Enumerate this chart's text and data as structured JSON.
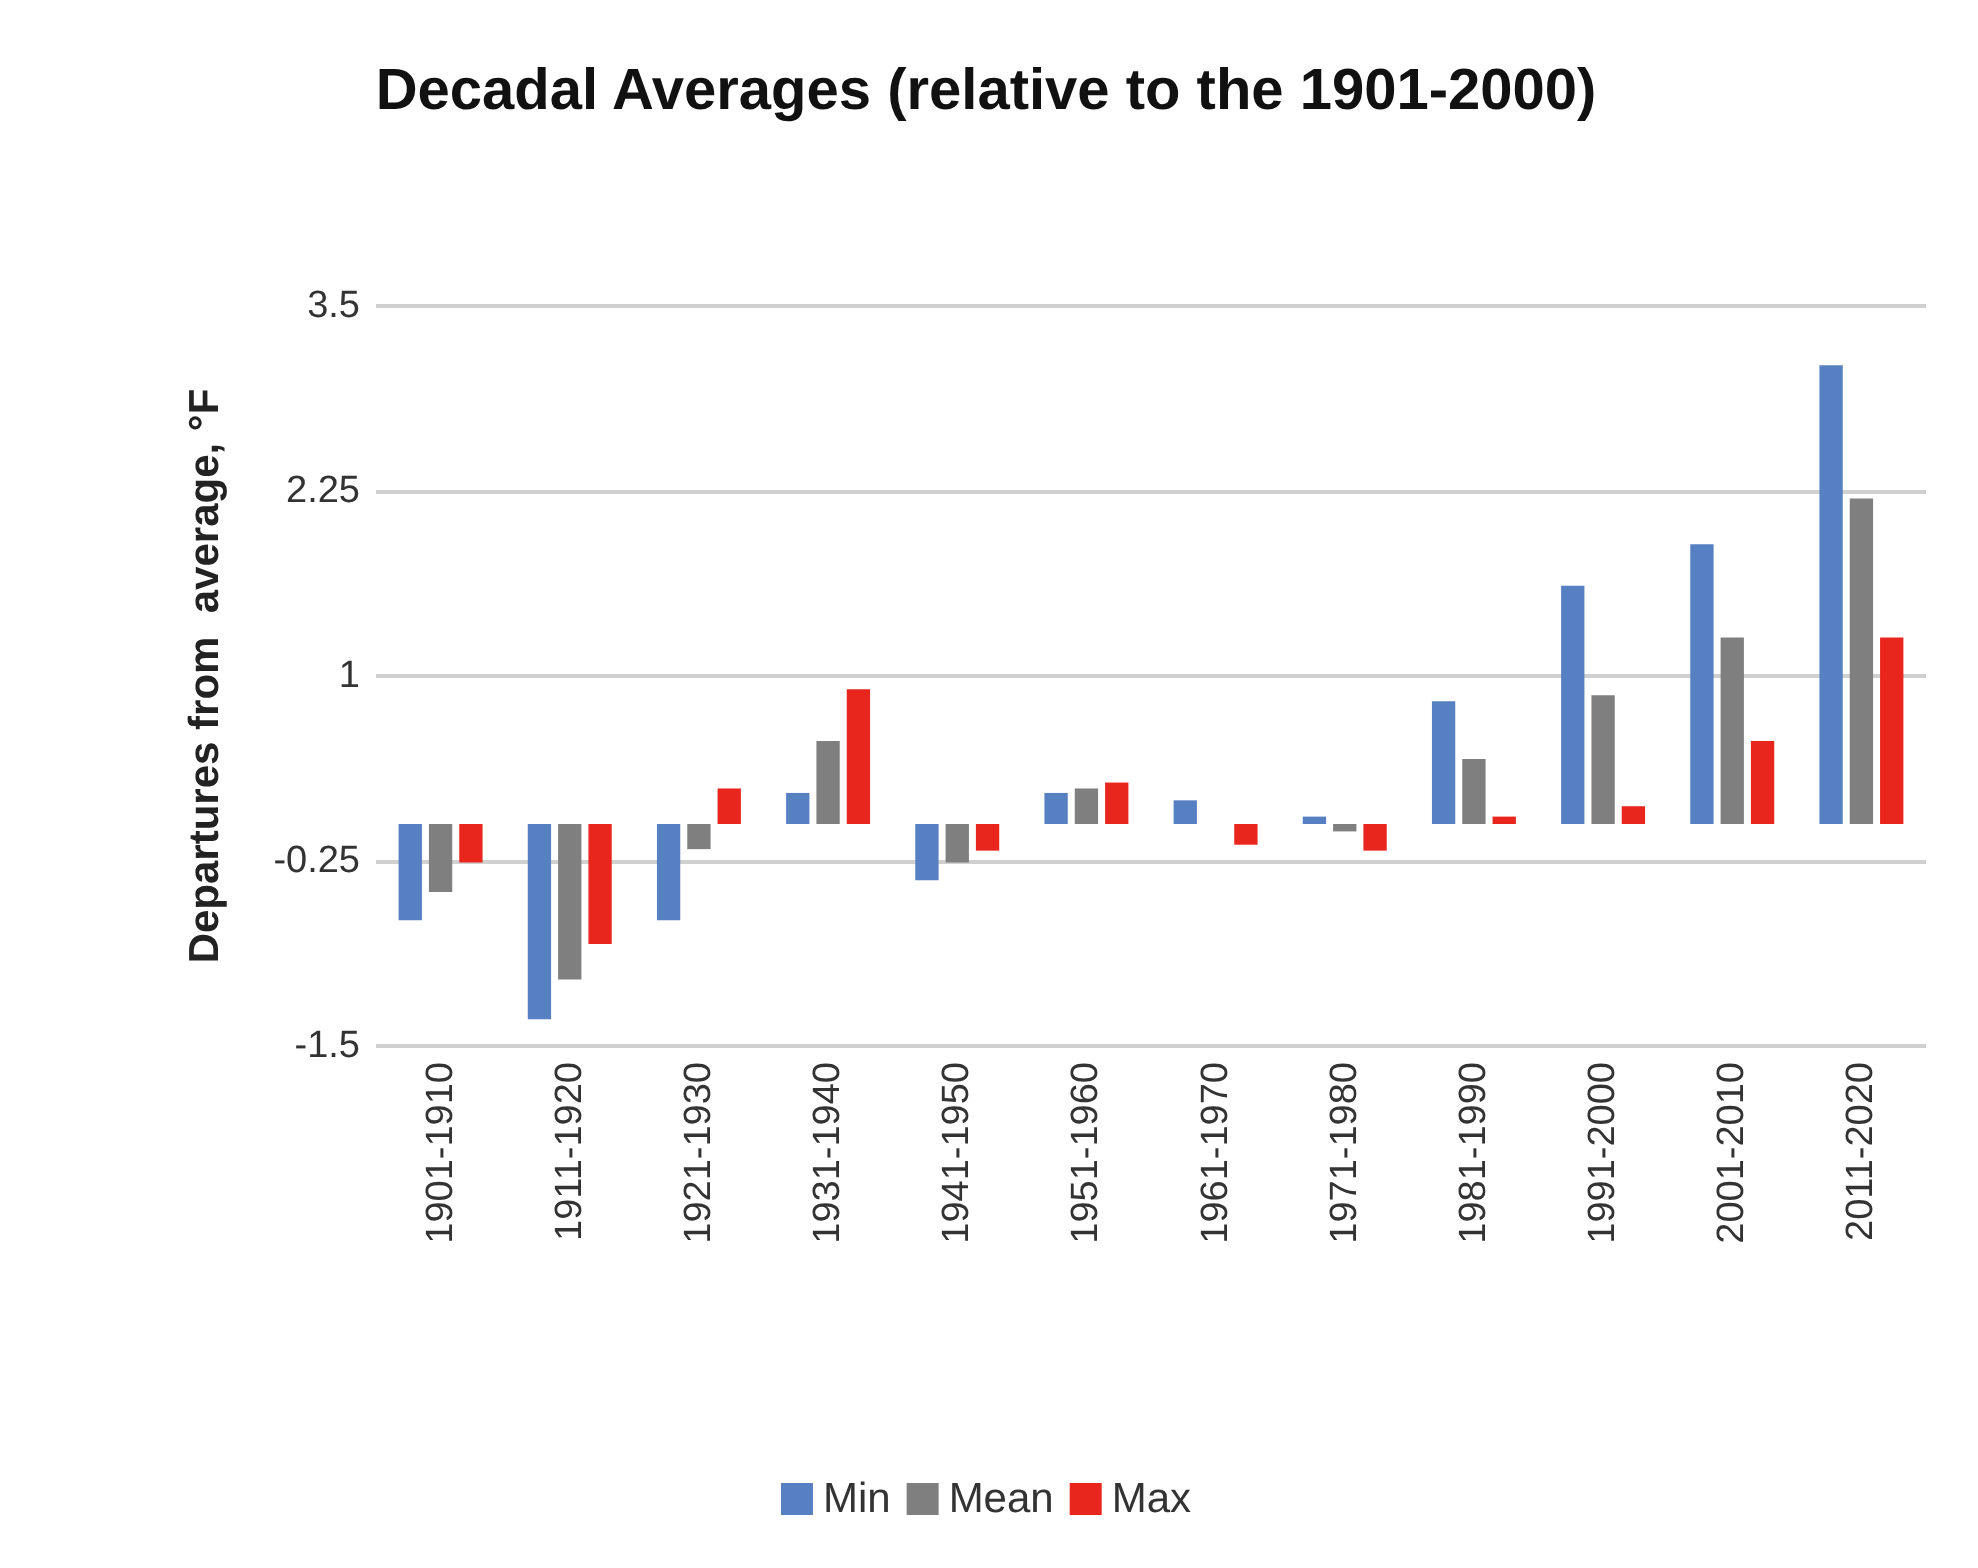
{
  "chart_data": {
    "type": "bar",
    "title": "Decadal Averages (relative to the 1901-2000)",
    "ylabel": "Departures from  average, °F",
    "categories": [
      "1901-1910",
      "1911-1920",
      "1921-1930",
      "1931-1940",
      "1941-1950",
      "1951-1960",
      "1961-1970",
      "1971-1980",
      "1981-1990",
      "1991-2000",
      "2001-2010",
      "2011-2020"
    ],
    "series": [
      {
        "name": "Min",
        "color": "#5680c2",
        "values": [
          -0.65,
          -1.32,
          -0.65,
          0.21,
          -0.38,
          0.21,
          0.16,
          0.05,
          0.83,
          1.61,
          1.89,
          3.1
        ]
      },
      {
        "name": "Mean",
        "color": "#7f7f7f",
        "values": [
          -0.46,
          -1.05,
          -0.17,
          0.56,
          -0.26,
          0.24,
          0,
          -0.05,
          0.44,
          0.87,
          1.26,
          2.2
        ]
      },
      {
        "name": "Max",
        "color": "#e8261e",
        "values": [
          -0.26,
          -0.81,
          0.24,
          0.91,
          -0.18,
          0.28,
          -0.14,
          -0.18,
          0.05,
          0.12,
          0.56,
          1.26
        ]
      }
    ],
    "ylim": [
      -1.5,
      3.5
    ],
    "yticks": [
      -1.5,
      -0.25,
      1,
      2.25,
      3.5
    ],
    "grid": "y",
    "legend": "bottom"
  }
}
